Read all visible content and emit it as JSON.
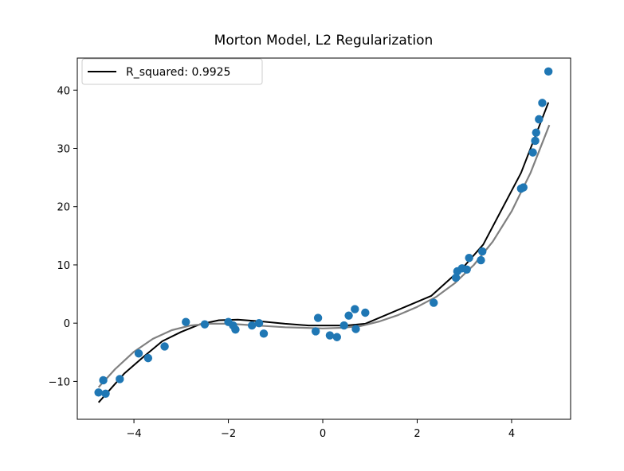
{
  "chart_data": {
    "type": "scatter",
    "title": "Morton Model, L2 Regularization",
    "xlabel": "",
    "ylabel": "",
    "xlim": [
      -5.2,
      5.25
    ],
    "ylim": [
      -16.5,
      45.5
    ],
    "xticks": [
      -4,
      -2,
      0,
      2,
      4
    ],
    "yticks": [
      -10,
      0,
      10,
      20,
      30,
      40
    ],
    "grid": false,
    "legend": {
      "location": "upper-left",
      "label": "R_squared: 0.9925"
    },
    "colors": {
      "points": "#1f77b4",
      "fit": "#000000",
      "true_curve": "#808080"
    },
    "points": {
      "x": [
        -4.75,
        -4.65,
        -4.6,
        -4.3,
        -3.9,
        -3.7,
        -3.35,
        -2.9,
        -2.5,
        -2.0,
        -1.9,
        -1.85,
        -1.5,
        -1.35,
        -1.25,
        -0.15,
        -0.1,
        0.15,
        0.3,
        0.45,
        0.55,
        0.68,
        0.7,
        0.9,
        2.35,
        2.82,
        2.85,
        2.95,
        3.05,
        3.1,
        3.35,
        3.38,
        4.2,
        4.25,
        4.45,
        4.5,
        4.52,
        4.58,
        4.65,
        4.78
      ],
      "y": [
        -11.9,
        -9.8,
        -12.1,
        -9.6,
        -5.2,
        -6.0,
        -4.0,
        0.2,
        -0.2,
        0.2,
        -0.4,
        -1.1,
        -0.4,
        0.0,
        -1.8,
        -1.4,
        0.9,
        -2.1,
        -2.4,
        -0.4,
        1.3,
        2.4,
        -1.0,
        1.8,
        3.5,
        7.8,
        8.9,
        9.4,
        9.2,
        11.2,
        10.8,
        12.3,
        23.1,
        23.3,
        29.3,
        31.3,
        32.7,
        35.0,
        37.8,
        43.2
      ]
    },
    "series": [
      {
        "role": "fit",
        "x": [
          -4.75,
          -4.2,
          -3.8,
          -3.4,
          -3.0,
          -2.6,
          -2.2,
          -1.8,
          -1.3,
          -0.8,
          -0.3,
          0.2,
          0.5,
          0.9,
          2.3,
          3.0,
          3.4,
          4.2,
          4.78
        ],
        "y": [
          -13.6,
          -8.6,
          -5.8,
          -3.1,
          -1.5,
          -0.2,
          0.5,
          0.6,
          0.3,
          -0.1,
          -0.4,
          -0.4,
          -0.4,
          -0.1,
          4.7,
          9.8,
          13.5,
          25.8,
          37.9
        ]
      },
      {
        "role": "true_curve",
        "x": [
          -4.75,
          -4.4,
          -4.0,
          -3.6,
          -3.2,
          -2.8,
          -2.4,
          -2.0,
          -1.6,
          -1.2,
          -0.8,
          -0.4,
          0.0,
          0.4,
          0.8,
          1.2,
          1.6,
          2.0,
          2.4,
          2.8,
          3.2,
          3.6,
          4.0,
          4.4,
          4.8
        ],
        "y": [
          -11.0,
          -7.9,
          -4.9,
          -2.7,
          -1.2,
          -0.4,
          -0.1,
          -0.1,
          -0.3,
          -0.5,
          -0.7,
          -0.8,
          -0.9,
          -0.8,
          -0.5,
          0.3,
          1.4,
          2.8,
          4.5,
          6.9,
          10.0,
          14.0,
          19.2,
          25.8,
          34.0
        ]
      }
    ]
  }
}
